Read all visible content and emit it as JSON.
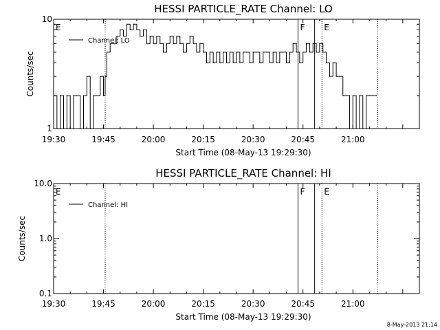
{
  "footer": {
    "timestamp": "8-May-2013 21:14"
  },
  "chart_data": [
    {
      "type": "line",
      "title": "HESSI PARTICLE_RATE Channel: LO",
      "xlabel": "Start Time (08-May-13 19:29:30)",
      "ylabel": "Counts/sec",
      "x_range_minutes": [
        0,
        110
      ],
      "xticks": [
        {
          "t": 0,
          "label": "19:30"
        },
        {
          "t": 15,
          "label": "19:45"
        },
        {
          "t": 30,
          "label": "20:00"
        },
        {
          "t": 45,
          "label": "20:15"
        },
        {
          "t": 60,
          "label": "20:30"
        },
        {
          "t": 75,
          "label": "20:45"
        },
        {
          "t": 90,
          "label": "21:00"
        }
      ],
      "y_scale": "log",
      "ylim": [
        1,
        10
      ],
      "yticks": [
        {
          "v": 1,
          "label": "1"
        },
        {
          "v": 10,
          "label": "10"
        }
      ],
      "legend": {
        "label": "Channel: LO",
        "placement": "top-left"
      },
      "markers": [
        {
          "t": 0.0,
          "label": "E",
          "style": "dotted"
        },
        {
          "t": 15.5,
          "label": "",
          "style": "dotted"
        },
        {
          "t": 73.5,
          "label": "F",
          "style": "solid"
        },
        {
          "t": 78.5,
          "label": "",
          "style": "solid"
        },
        {
          "t": 80.7,
          "label": "E",
          "style": "dotted"
        },
        {
          "t": 97.5,
          "label": "",
          "style": "dotted"
        }
      ],
      "series": [
        {
          "values": [
            [
              0,
              2
            ],
            [
              1,
              1
            ],
            [
              2,
              2
            ],
            [
              3,
              1
            ],
            [
              4,
              2
            ],
            [
              5,
              1
            ],
            [
              6,
              2
            ],
            [
              7,
              2
            ],
            [
              8,
              1
            ],
            [
              9,
              2
            ],
            [
              10,
              3
            ],
            [
              11,
              1
            ],
            [
              12,
              2
            ],
            [
              13,
              2
            ],
            [
              14,
              3
            ],
            [
              15,
              2
            ],
            [
              15.5,
              3
            ],
            [
              16,
              5
            ],
            [
              17,
              6
            ],
            [
              18,
              6
            ],
            [
              19,
              7
            ],
            [
              20,
              8
            ],
            [
              21,
              7
            ],
            [
              22,
              9
            ],
            [
              23,
              8
            ],
            [
              24,
              9
            ],
            [
              25,
              8
            ],
            [
              26,
              7
            ],
            [
              27,
              8
            ],
            [
              28,
              6
            ],
            [
              29,
              7
            ],
            [
              30,
              6
            ],
            [
              31,
              7
            ],
            [
              32,
              6
            ],
            [
              33,
              5
            ],
            [
              34,
              6
            ],
            [
              35,
              7
            ],
            [
              36,
              6
            ],
            [
              37,
              7
            ],
            [
              38,
              6
            ],
            [
              39,
              5
            ],
            [
              40,
              6
            ],
            [
              41,
              7
            ],
            [
              42,
              6
            ],
            [
              43,
              5
            ],
            [
              44,
              6
            ],
            [
              45,
              5
            ],
            [
              46,
              4
            ],
            [
              47,
              5
            ],
            [
              48,
              4
            ],
            [
              49,
              5
            ],
            [
              50,
              4
            ],
            [
              51,
              5
            ],
            [
              52,
              4
            ],
            [
              53,
              5
            ],
            [
              54,
              4
            ],
            [
              55,
              5
            ],
            [
              56,
              4
            ],
            [
              57,
              5
            ],
            [
              58,
              5
            ],
            [
              59,
              4
            ],
            [
              60,
              5
            ],
            [
              61,
              5
            ],
            [
              62,
              4
            ],
            [
              63,
              5
            ],
            [
              64,
              5
            ],
            [
              65,
              4
            ],
            [
              66,
              5
            ],
            [
              67,
              4
            ],
            [
              68,
              5
            ],
            [
              69,
              5
            ],
            [
              70,
              4
            ],
            [
              71,
              5
            ],
            [
              72,
              6
            ],
            [
              73,
              5
            ],
            [
              74,
              4
            ],
            [
              75,
              5
            ],
            [
              76,
              6
            ],
            [
              77,
              5
            ],
            [
              78,
              6
            ],
            [
              79,
              5
            ],
            [
              80,
              6
            ],
            [
              81,
              5
            ],
            [
              82,
              4
            ],
            [
              83,
              3
            ],
            [
              84,
              4
            ],
            [
              85,
              3
            ],
            [
              86,
              3
            ],
            [
              87,
              2
            ],
            [
              88,
              2
            ],
            [
              89,
              1
            ],
            [
              90,
              2
            ],
            [
              91,
              1
            ],
            [
              92,
              2
            ],
            [
              93,
              1
            ],
            [
              94,
              2
            ],
            [
              95,
              2
            ],
            [
              96,
              2
            ],
            [
              97,
              2
            ]
          ]
        }
      ]
    },
    {
      "type": "line",
      "title": "HESSI PARTICLE_RATE Channel: HI",
      "xlabel": "Start Time (08-May-13 19:29:30)",
      "ylabel": "Counts/sec",
      "x_range_minutes": [
        0,
        110
      ],
      "xticks": [
        {
          "t": 0,
          "label": "19:30"
        },
        {
          "t": 15,
          "label": "19:45"
        },
        {
          "t": 30,
          "label": "20:00"
        },
        {
          "t": 45,
          "label": "20:15"
        },
        {
          "t": 60,
          "label": "20:30"
        },
        {
          "t": 75,
          "label": "20:45"
        },
        {
          "t": 90,
          "label": "21:00"
        }
      ],
      "y_scale": "log",
      "ylim": [
        0.1,
        10
      ],
      "yticks": [
        {
          "v": 0.1,
          "label": "0.1"
        },
        {
          "v": 1,
          "label": "1.0"
        },
        {
          "v": 10,
          "label": "10.0"
        }
      ],
      "legend": {
        "label": "Channel: HI",
        "placement": "top-left"
      },
      "markers": [
        {
          "t": 0.0,
          "label": "E",
          "style": "dotted"
        },
        {
          "t": 15.5,
          "label": "",
          "style": "dotted"
        },
        {
          "t": 73.5,
          "label": "F",
          "style": "solid"
        },
        {
          "t": 78.5,
          "label": "",
          "style": "solid"
        },
        {
          "t": 80.7,
          "label": "E",
          "style": "dotted"
        },
        {
          "t": 97.5,
          "label": "",
          "style": "dotted"
        }
      ],
      "series": [
        {
          "values": []
        }
      ]
    }
  ]
}
